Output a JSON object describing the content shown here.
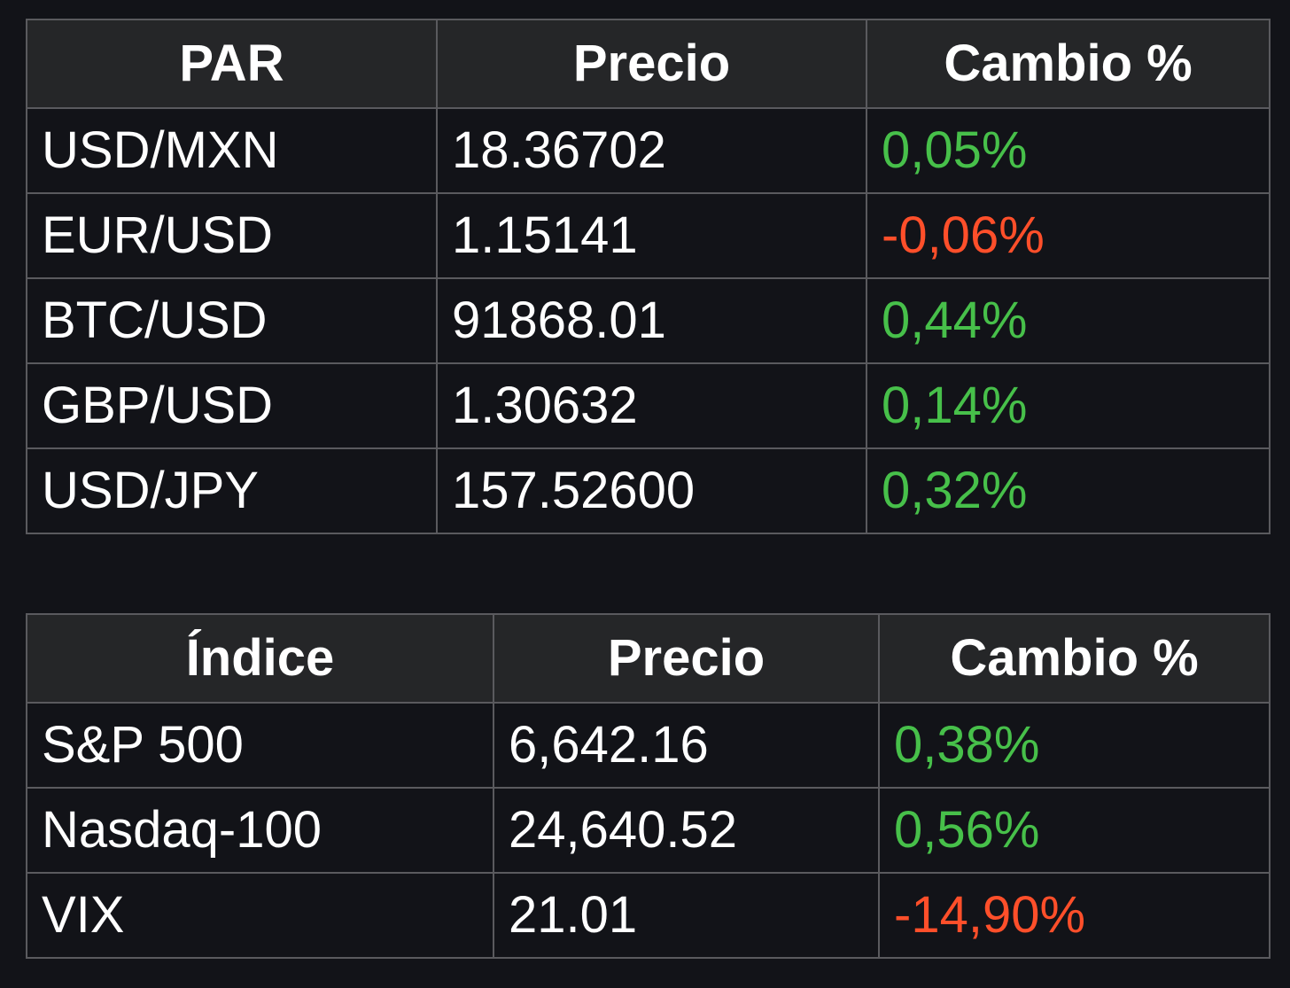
{
  "pairs_table": {
    "headers": [
      "PAR",
      "Precio",
      "Cambio %"
    ],
    "rows": [
      {
        "name": "USD/MXN",
        "price": "18.36702",
        "change": "0,05%",
        "direction": "up"
      },
      {
        "name": "EUR/USD",
        "price": "1.15141",
        "change": "-0,06%",
        "direction": "down"
      },
      {
        "name": "BTC/USD",
        "price": "91868.01",
        "change": "0,44%",
        "direction": "up"
      },
      {
        "name": "GBP/USD",
        "price": "1.30632",
        "change": "0,14%",
        "direction": "up"
      },
      {
        "name": "USD/JPY",
        "price": "157.52600",
        "change": "0,32%",
        "direction": "up"
      }
    ]
  },
  "indices_table": {
    "headers": [
      "Índice",
      "Precio",
      "Cambio %"
    ],
    "rows": [
      {
        "name": "S&P 500",
        "price": "6,642.16",
        "change": "0,38%",
        "direction": "up"
      },
      {
        "name": "Nasdaq-100",
        "price": "24,640.52",
        "change": "0,56%",
        "direction": "up"
      },
      {
        "name": "VIX",
        "price": "21.01",
        "change": "-14,90%",
        "direction": "down"
      }
    ]
  },
  "colors": {
    "background": "#121318",
    "header_background": "#252628",
    "border": "#5a5a5e",
    "positive": "#47c04a",
    "negative": "#ff4f2a"
  }
}
